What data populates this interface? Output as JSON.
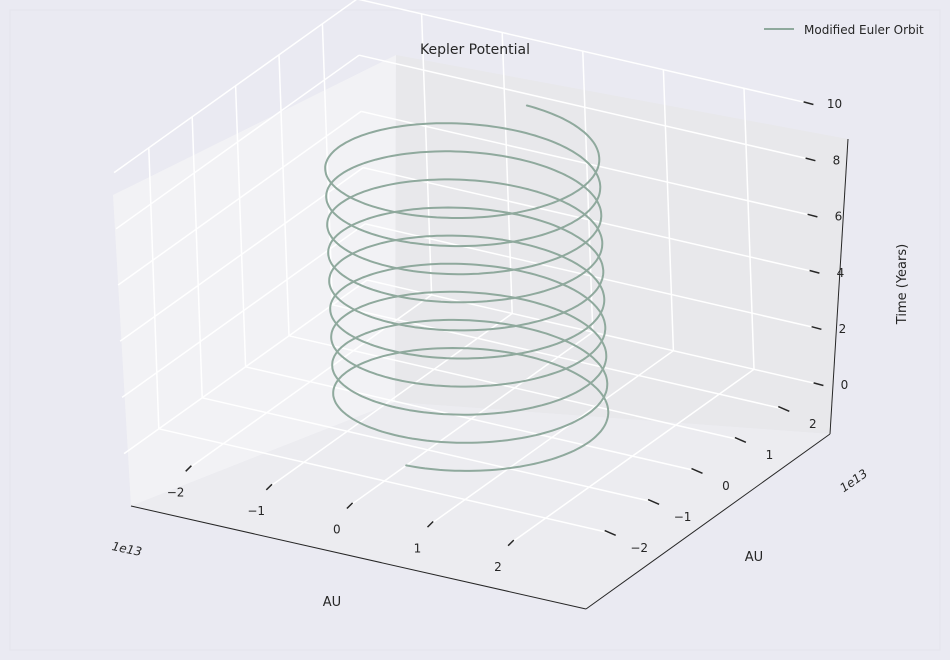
{
  "chart_data": {
    "type": "line",
    "projection": "3d",
    "title": "Kepler Potential",
    "xlabel": "AU",
    "ylabel": "AU",
    "zlabel": "Time (Years)",
    "x_offset_label": "1e13",
    "y_offset_label": "1e13",
    "xlim": [
      -2.8,
      2.8
    ],
    "ylim": [
      -2.8,
      2.8
    ],
    "zlim": [
      0,
      10
    ],
    "x_ticks": [
      -2,
      -1,
      0,
      1,
      2
    ],
    "x_tick_labels": [
      "−2",
      "−1",
      "0",
      "1",
      "2"
    ],
    "y_ticks": [
      -2,
      -1,
      0,
      1,
      2
    ],
    "y_tick_labels": [
      "−2",
      "−1",
      "0",
      "1",
      "2"
    ],
    "z_ticks": [
      0,
      2,
      4,
      6,
      8,
      10
    ],
    "z_tick_labels": [
      "0",
      "2",
      "4",
      "6",
      "8",
      "10"
    ],
    "grid": true,
    "legend": {
      "position": "top-right",
      "entries": [
        "Modified Euler Orbit"
      ]
    },
    "series": [
      {
        "name": "Modified Euler Orbit",
        "color": "#8fa99d",
        "orbit_radius": 1.5,
        "orbits_completed": 9.5,
        "t_start": 0,
        "t_end": 9.5
      }
    ]
  },
  "colors": {
    "background": "#eaeaf2",
    "pane_left": "#f2f2f5",
    "pane_back": "#e8e8eb",
    "pane_floor": "#ececf0",
    "grid": "#ffffff",
    "axis_line": "#262626",
    "text": "#262626"
  }
}
